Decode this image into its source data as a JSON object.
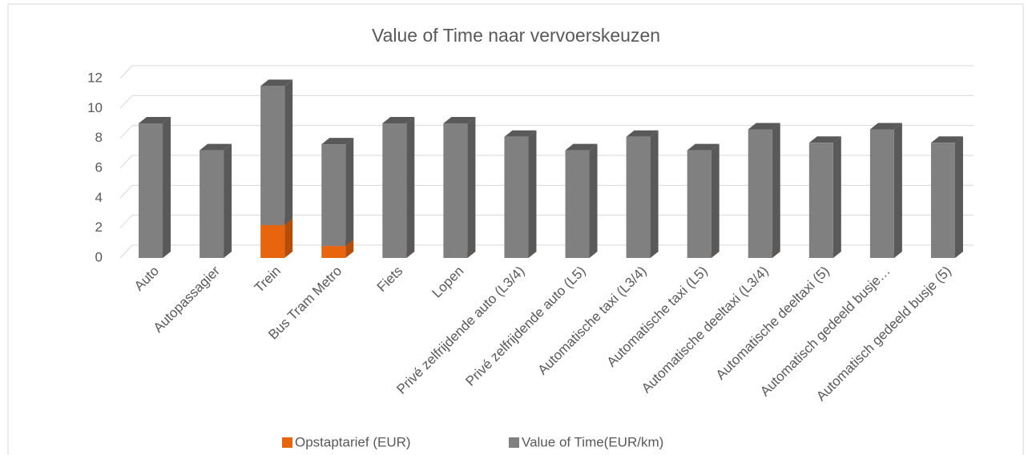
{
  "chart_data": {
    "type": "bar",
    "stacked": true,
    "title": "Value of Time naar vervoerskeuzen",
    "categories": [
      "Auto",
      "Autopassagier",
      "Trein",
      "Bus Tram Metro",
      "Fiets",
      "Lopen",
      "Privé zelfrijdende auto (L3/4)",
      "Privé zelfrijdende auto (L5)",
      "Automatische taxi (L3/4)",
      "Automatische taxi (L5)",
      "Automatische deeltaxi (L3/4)",
      "Automatische deeltaxi (5)",
      "Automatisch gedeeld busje…",
      "Automatisch gedeeld busje (5)"
    ],
    "series": [
      {
        "name": "Opstaptarief (EUR)",
        "color": "#e8650e",
        "side": "#b54c07",
        "values": [
          0,
          0,
          2.2,
          0.8,
          0,
          0,
          0,
          0,
          0,
          0,
          0,
          0,
          0,
          0
        ]
      },
      {
        "name": "Value of Time(EUR/km)",
        "color": "#808080",
        "side": "#595959",
        "values": [
          9,
          7.2,
          9.3,
          6.8,
          9,
          9,
          8.1,
          7.2,
          8.1,
          7.2,
          8.6,
          7.7,
          8.6,
          7.7
        ]
      }
    ],
    "ylim": [
      0,
      12
    ],
    "yticks": [
      0,
      2,
      4,
      6,
      8,
      10,
      12
    ],
    "grid": true,
    "legend": "bottom"
  }
}
